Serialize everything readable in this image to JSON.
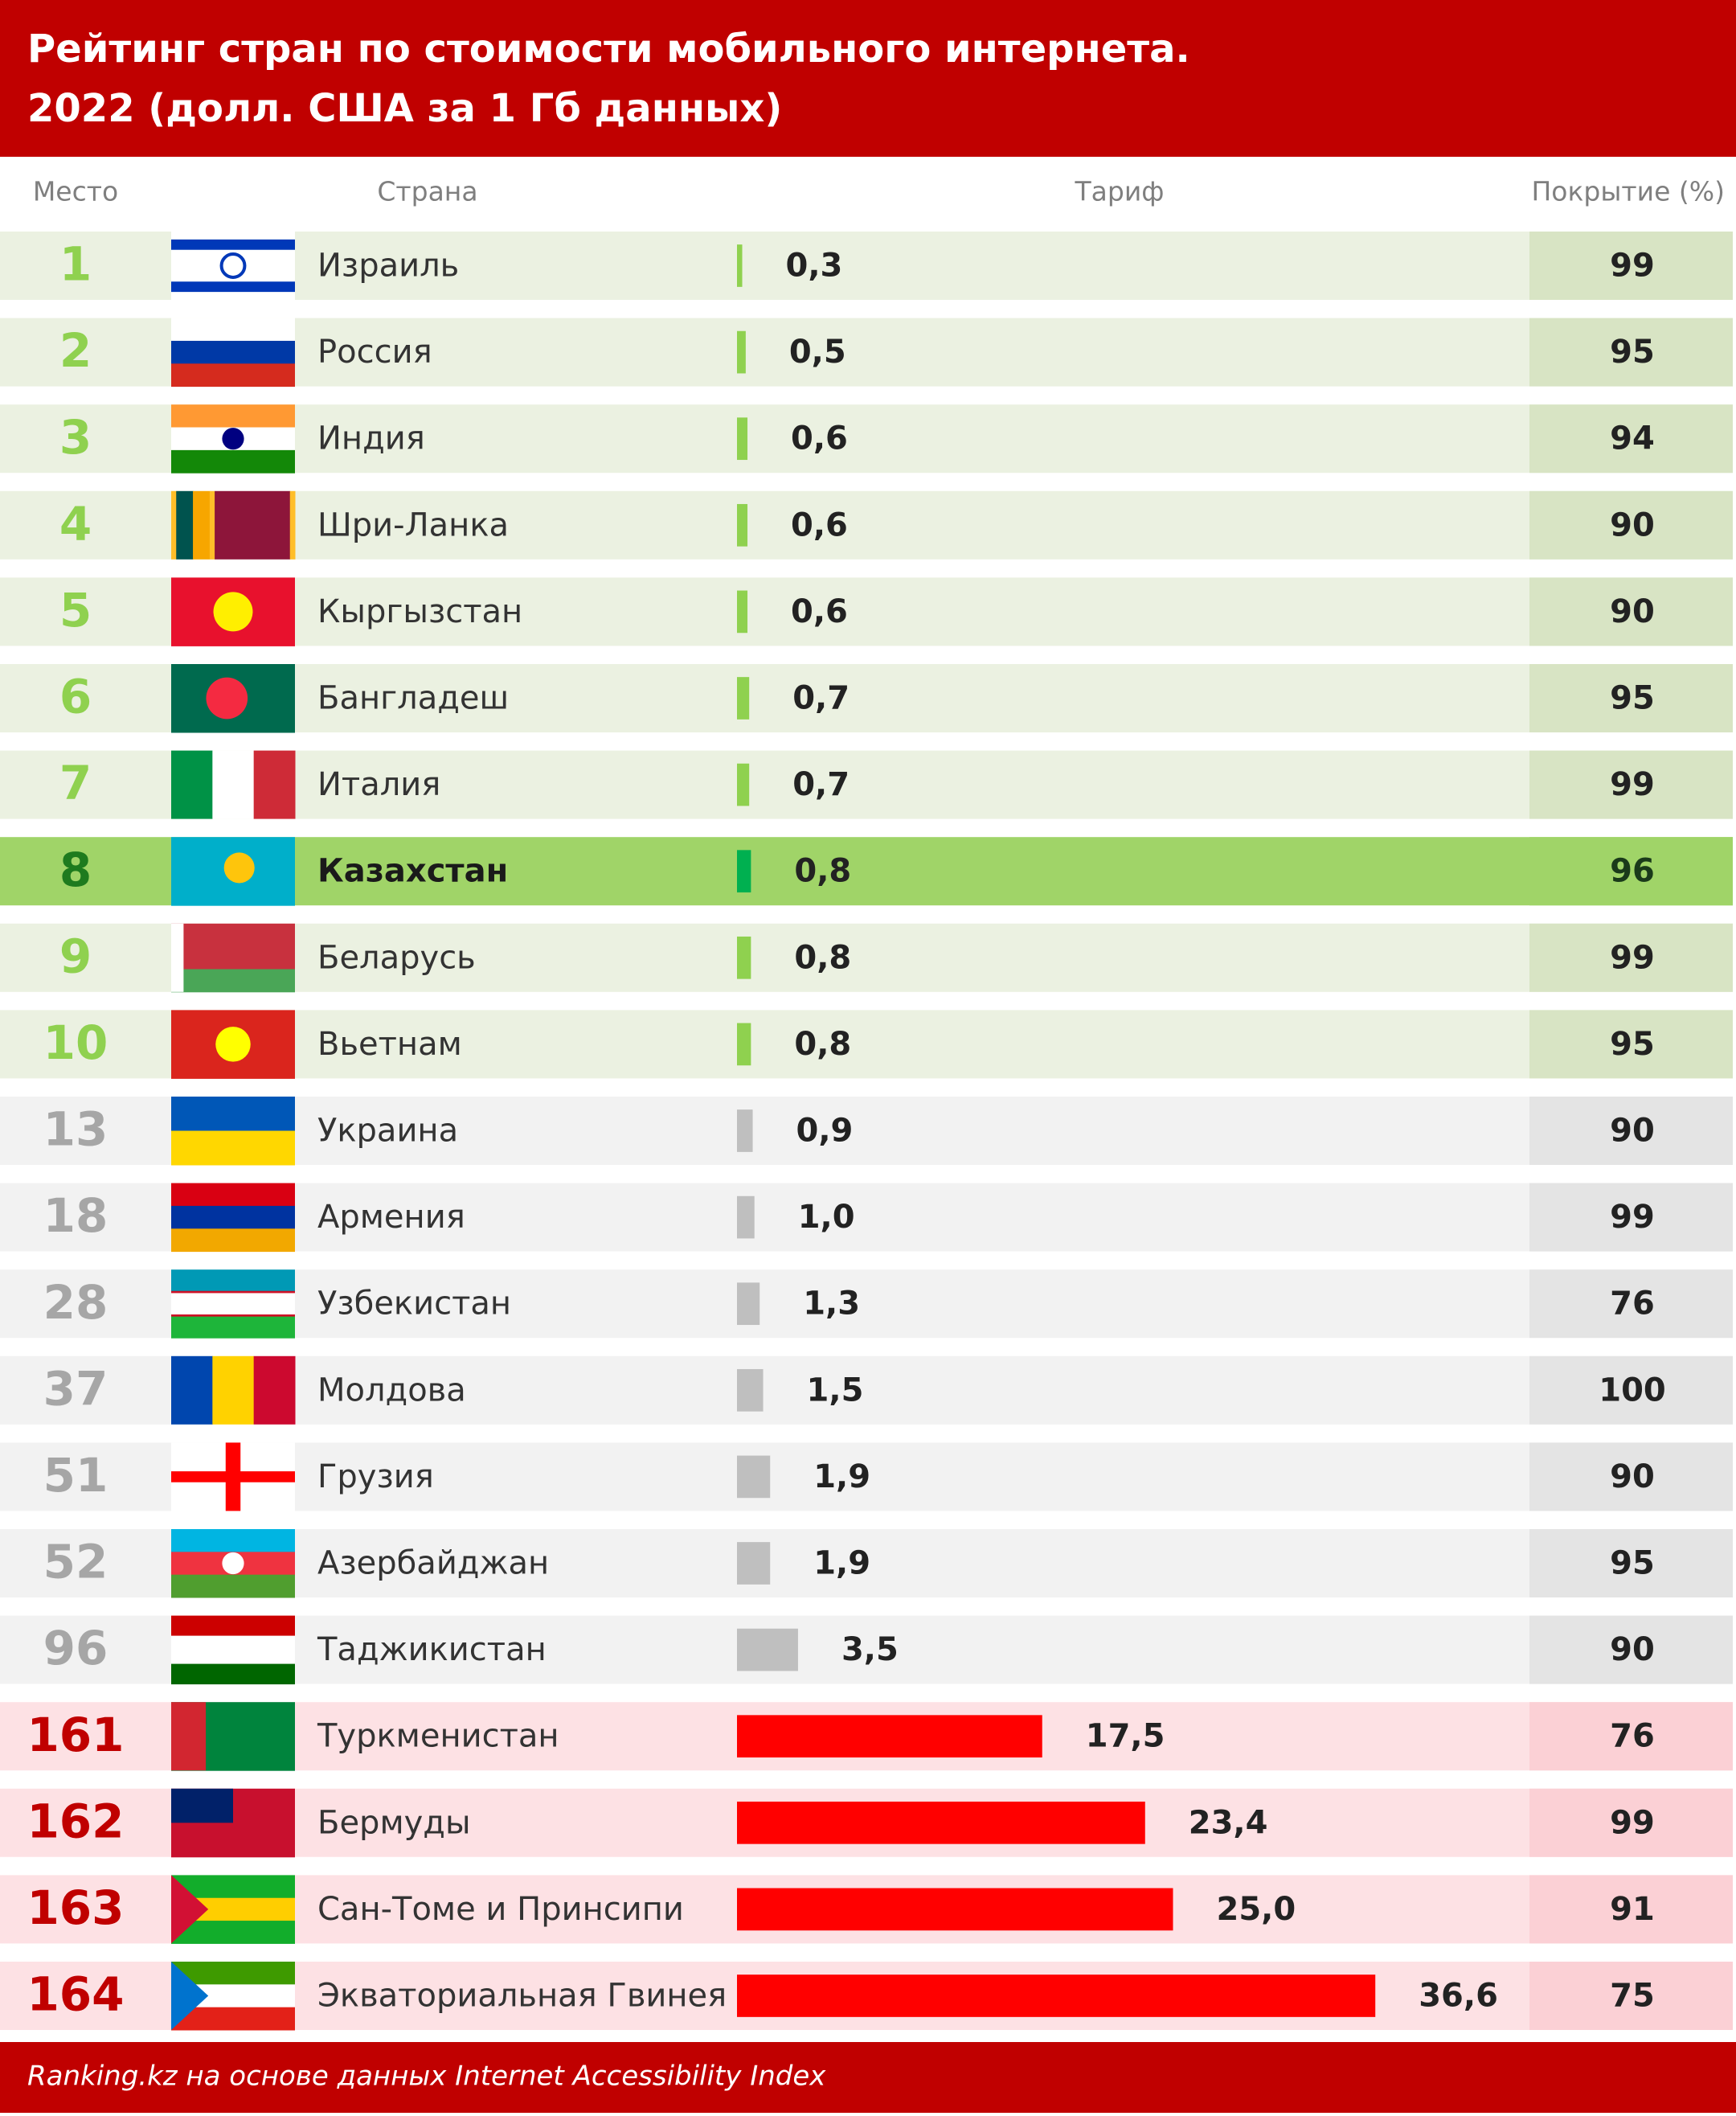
{
  "chart_data": {
    "type": "bar-table",
    "title": "Рейтинг стран по стоимости мобильного интернета.",
    "subtitle": "2022 (долл. США за 1 Гб данных)",
    "columns": [
      "Место",
      "Страна",
      "Тариф",
      "Покрытие (%)"
    ],
    "source": "Ranking.kz на основе данных Internet Accessibility Index",
    "highlight_row": 7,
    "styles": {
      "green": {
        "bar": "#8fd14f",
        "rank": "#8fd14f",
        "row": "#ebf1e1",
        "cell": "#d8e4c4",
        "text": "#222222"
      },
      "accent": {
        "bar": "#00b050",
        "rank": "#1e7b1e",
        "row": "#a0d468",
        "cell": "#a0d468",
        "text": "#1a3a1a"
      },
      "grey": {
        "bar": "#bfbfbf",
        "rank": "#a6a6a6",
        "row": "#f2f2f2",
        "cell": "#e4e4e4",
        "text": "#222222"
      },
      "red": {
        "bar": "#ff0000",
        "rank": "#c00000",
        "row": "#fde1e4",
        "cell": "#fbd0d5",
        "text": "#222222"
      }
    },
    "rows": [
      {
        "rank": 1,
        "country": "Израиль",
        "tariff": 0.3,
        "tariff_label": "0,3",
        "coverage": 99,
        "style": "green"
      },
      {
        "rank": 2,
        "country": "Россия",
        "tariff": 0.5,
        "tariff_label": "0,5",
        "coverage": 95,
        "style": "green"
      },
      {
        "rank": 3,
        "country": "Индия",
        "tariff": 0.6,
        "tariff_label": "0,6",
        "coverage": 94,
        "style": "green"
      },
      {
        "rank": 4,
        "country": "Шри-Ланка",
        "tariff": 0.6,
        "tariff_label": "0,6",
        "coverage": 90,
        "style": "green"
      },
      {
        "rank": 5,
        "country": "Кыргызстан",
        "tariff": 0.6,
        "tariff_label": "0,6",
        "coverage": 90,
        "style": "green"
      },
      {
        "rank": 6,
        "country": "Бангладеш",
        "tariff": 0.7,
        "tariff_label": "0,7",
        "coverage": 95,
        "style": "green"
      },
      {
        "rank": 7,
        "country": "Италия",
        "tariff": 0.7,
        "tariff_label": "0,7",
        "coverage": 99,
        "style": "green"
      },
      {
        "rank": 8,
        "country": "Казахстан",
        "tariff": 0.8,
        "tariff_label": "0,8",
        "coverage": 96,
        "style": "accent"
      },
      {
        "rank": 9,
        "country": "Беларусь",
        "tariff": 0.8,
        "tariff_label": "0,8",
        "coverage": 99,
        "style": "green"
      },
      {
        "rank": 10,
        "country": "Вьетнам",
        "tariff": 0.8,
        "tariff_label": "0,8",
        "coverage": 95,
        "style": "green"
      },
      {
        "rank": 13,
        "country": "Украина",
        "tariff": 0.9,
        "tariff_label": "0,9",
        "coverage": 90,
        "style": "grey"
      },
      {
        "rank": 18,
        "country": "Армения",
        "tariff": 1.0,
        "tariff_label": "1,0",
        "coverage": 99,
        "style": "grey"
      },
      {
        "rank": 28,
        "country": "Узбекистан",
        "tariff": 1.3,
        "tariff_label": "1,3",
        "coverage": 76,
        "style": "grey"
      },
      {
        "rank": 37,
        "country": "Молдова",
        "tariff": 1.5,
        "tariff_label": "1,5",
        "coverage": 100,
        "style": "grey"
      },
      {
        "rank": 51,
        "country": "Грузия",
        "tariff": 1.9,
        "tariff_label": "1,9",
        "coverage": 90,
        "style": "grey"
      },
      {
        "rank": 52,
        "country": "Азербайджан",
        "tariff": 1.9,
        "tariff_label": "1,9",
        "coverage": 95,
        "style": "grey"
      },
      {
        "rank": 96,
        "country": "Таджикистан",
        "tariff": 3.5,
        "tariff_label": "3,5",
        "coverage": 90,
        "style": "grey"
      },
      {
        "rank": 161,
        "country": "Туркменистан",
        "tariff": 17.5,
        "tariff_label": "17,5",
        "coverage": 76,
        "style": "red"
      },
      {
        "rank": 162,
        "country": "Бермуды",
        "tariff": 23.4,
        "tariff_label": "23,4",
        "coverage": 99,
        "style": "red"
      },
      {
        "rank": 163,
        "country": "Сан-Томе и Принсипи",
        "tariff": 25.0,
        "tariff_label": "25,0",
        "coverage": 91,
        "style": "red"
      },
      {
        "rank": 164,
        "country": "Экваториальная Гвинея",
        "tariff": 36.6,
        "tariff_label": "36,6",
        "coverage": 75,
        "style": "red"
      }
    ]
  }
}
